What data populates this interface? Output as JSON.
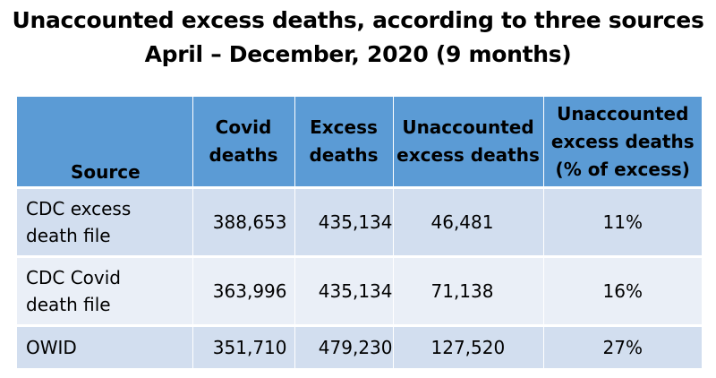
{
  "title": {
    "line1": "Unaccounted excess deaths, according to three sources",
    "line2": "April – December, 2020 (9 months)"
  },
  "table": {
    "headers": [
      {
        "line1": "Source",
        "line2": "",
        "line3": ""
      },
      {
        "line1": "Covid",
        "line2": "deaths",
        "line3": ""
      },
      {
        "line1": "Excess",
        "line2": "deaths",
        "line3": ""
      },
      {
        "line1": "Unaccounted",
        "line2": "excess deaths",
        "line3": ""
      },
      {
        "line1": "Unaccounted",
        "line2": "excess deaths",
        "line3": "(% of excess)"
      }
    ],
    "rows": [
      {
        "source_line1": "CDC excess",
        "source_line2": "death file",
        "covid_deaths": "388,653",
        "excess_deaths": "435,134",
        "unaccounted": "46,481",
        "pct": "11%"
      },
      {
        "source_line1": "CDC Covid",
        "source_line2": "death file",
        "covid_deaths": "363,996",
        "excess_deaths": "435,134",
        "unaccounted": "71,138",
        "pct": "16%"
      },
      {
        "source_line1": "OWID",
        "source_line2": "",
        "covid_deaths": "351,710",
        "excess_deaths": "479,230",
        "unaccounted": "127,520",
        "pct": "27%"
      }
    ]
  },
  "colors": {
    "header_bg": "#5b9bd5",
    "row_odd_bg": "#d2deef",
    "row_even_bg": "#eaeff7"
  }
}
